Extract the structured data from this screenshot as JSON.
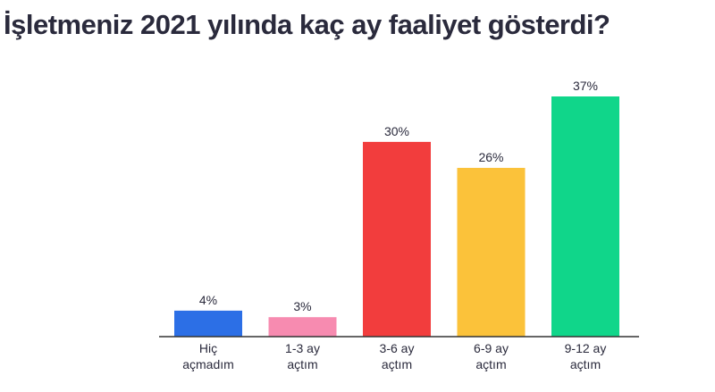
{
  "chart_data": {
    "type": "bar",
    "title": "İşletmeniz 2021 yılında kaç ay faaliyet gösterdi?",
    "categories": [
      [
        "Hiç",
        "açmadım"
      ],
      [
        "1-3 ay",
        "açtım"
      ],
      [
        "3-6 ay",
        "açtım"
      ],
      [
        "6-9 ay",
        "açtım"
      ],
      [
        "9-12 ay",
        "açtım"
      ]
    ],
    "values": [
      4,
      3,
      30,
      26,
      37
    ],
    "value_labels": [
      "4%",
      "3%",
      "30%",
      "26%",
      "37%"
    ],
    "colors": [
      "#2c6fe6",
      "#f78bb0",
      "#f23d3d",
      "#fbc23a",
      "#10d68a"
    ],
    "ylim": [
      0,
      37
    ],
    "grid": false,
    "legend": "none"
  }
}
